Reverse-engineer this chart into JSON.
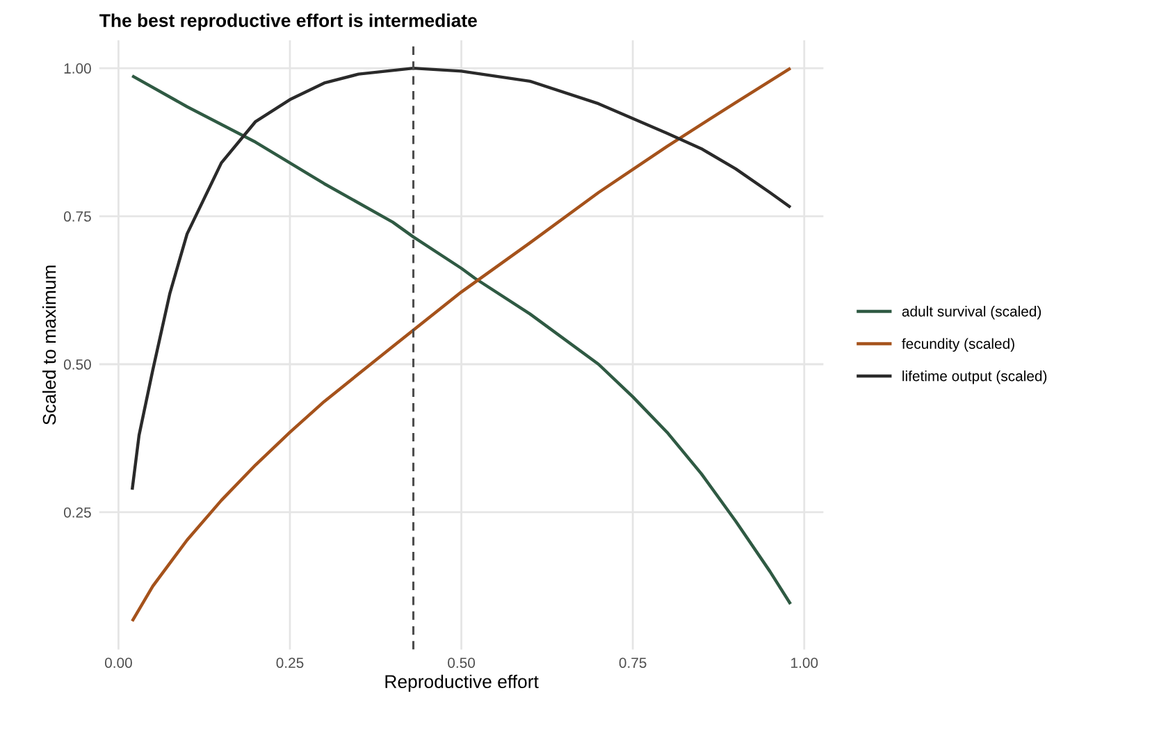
{
  "chart_data": {
    "type": "line",
    "title": "The best reproductive effort is intermediate",
    "xlabel": "Reproductive effort",
    "ylabel": "Scaled to maximum",
    "series": [
      {
        "name": "adult survival (scaled)",
        "color": "#2f5a43",
        "x": [
          0.02,
          0.1,
          0.2,
          0.25,
          0.3,
          0.4,
          0.43,
          0.5,
          0.52,
          0.6,
          0.7,
          0.75,
          0.8,
          0.85,
          0.9,
          0.95,
          0.98
        ],
        "values": [
          0.987,
          0.935,
          0.875,
          0.84,
          0.805,
          0.74,
          0.715,
          0.662,
          0.645,
          0.585,
          0.5,
          0.445,
          0.385,
          0.315,
          0.235,
          0.15,
          0.095
        ]
      },
      {
        "name": "fecundity (scaled)",
        "color": "#a5521b",
        "x": [
          0.02,
          0.05,
          0.1,
          0.15,
          0.2,
          0.25,
          0.3,
          0.4,
          0.5,
          0.6,
          0.7,
          0.8,
          0.9,
          0.98
        ],
        "values": [
          0.066,
          0.125,
          0.203,
          0.27,
          0.33,
          0.385,
          0.437,
          0.53,
          0.622,
          0.705,
          0.79,
          0.868,
          0.942,
          1.0
        ]
      },
      {
        "name": "lifetime output (scaled)",
        "color": "#2a2a2a",
        "x": [
          0.02,
          0.03,
          0.05,
          0.075,
          0.1,
          0.15,
          0.2,
          0.25,
          0.3,
          0.35,
          0.43,
          0.5,
          0.6,
          0.7,
          0.8,
          0.85,
          0.9,
          0.95,
          0.98
        ],
        "values": [
          0.288,
          0.38,
          0.49,
          0.62,
          0.72,
          0.84,
          0.91,
          0.947,
          0.975,
          0.99,
          1.0,
          0.995,
          0.978,
          0.94,
          0.89,
          0.864,
          0.83,
          0.79,
          0.765
        ]
      }
    ],
    "ref_lines": [
      {
        "axis": "x",
        "value": 0.43,
        "color": "#4d4d4d",
        "line_style": "dashed"
      }
    ],
    "xlim": [
      -0.028,
      1.028
    ],
    "ylim": [
      0.018,
      1.047
    ],
    "xticks": [
      {
        "value": 0,
        "label": "0.00"
      },
      0.25,
      {
        "value": 0.5,
        "label": "0.50"
      },
      0.75,
      {
        "value": 1,
        "label": "1.00"
      }
    ],
    "yticks": [
      0.25,
      {
        "value": 0.5,
        "label": "0.50"
      },
      0.75,
      {
        "value": 1,
        "label": "1.00"
      }
    ],
    "grid": true,
    "legend": "right",
    "line_style": "solid",
    "marker": "none"
  }
}
